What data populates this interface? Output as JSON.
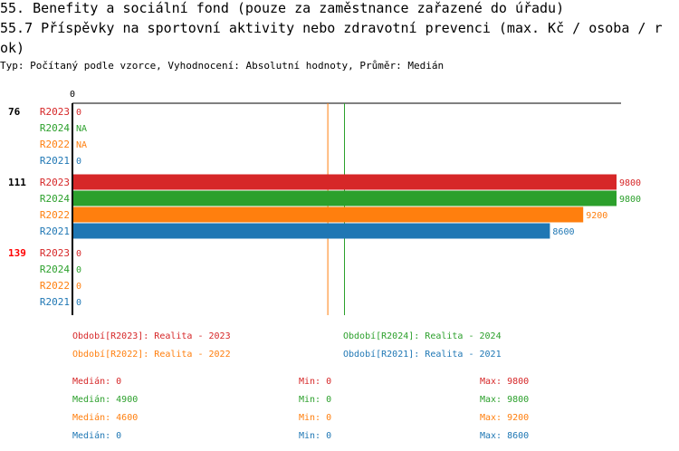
{
  "title": "55. Benefity a sociální fond (pouze za zaměstnance zařazené do úřadu)",
  "subtitle": "55.7 Příspěvky na sportovní aktivity nebo zdravotní prevenci (max. Kč / osoba / rok)",
  "type_line": "Typ: Počítaný podle vzorce, Vyhodnocení: Absolutní hodnoty, Průměr: Medián",
  "colors": {
    "R2023": "#d62728",
    "R2024": "#2ca02c",
    "R2022": "#ff7f0e",
    "R2021": "#1f77b4",
    "highlight": "#ff0000"
  },
  "chart_data": {
    "type": "bar",
    "orientation": "horizontal",
    "x_tick_labels": [
      "0"
    ],
    "xlim": [
      0,
      9800
    ],
    "series_order": [
      "R2023",
      "R2024",
      "R2022",
      "R2021"
    ],
    "groups": [
      {
        "label": "76",
        "highlight": false,
        "values": [
          {
            "series": "R2023",
            "value": 0,
            "label": "0"
          },
          {
            "series": "R2024",
            "value": null,
            "label": "NA"
          },
          {
            "series": "R2022",
            "value": null,
            "label": "NA"
          },
          {
            "series": "R2021",
            "value": 0,
            "label": "0"
          }
        ]
      },
      {
        "label": "111",
        "highlight": false,
        "values": [
          {
            "series": "R2023",
            "value": 9800,
            "label": "9800"
          },
          {
            "series": "R2024",
            "value": 9800,
            "label": "9800"
          },
          {
            "series": "R2022",
            "value": 9200,
            "label": "9200"
          },
          {
            "series": "R2021",
            "value": 8600,
            "label": "8600"
          }
        ]
      },
      {
        "label": "139",
        "highlight": true,
        "values": [
          {
            "series": "R2023",
            "value": 0,
            "label": "0"
          },
          {
            "series": "R2024",
            "value": 0,
            "label": "0"
          },
          {
            "series": "R2022",
            "value": 0,
            "label": "0"
          },
          {
            "series": "R2021",
            "value": 0,
            "label": "0"
          }
        ]
      }
    ],
    "median_lines": [
      {
        "series": "R2022",
        "value": 4600
      },
      {
        "series": "R2024",
        "value": 4900
      }
    ],
    "legend": [
      {
        "series": "R2023",
        "text": "Období[R2023]: Realita - 2023"
      },
      {
        "series": "R2024",
        "text": "Období[R2024]: Realita - 2024"
      },
      {
        "series": "R2022",
        "text": "Období[R2022]: Realita - 2022"
      },
      {
        "series": "R2021",
        "text": "Období[R2021]: Realita - 2021"
      }
    ],
    "stats": [
      {
        "series": "R2023",
        "median": "Medián: 0",
        "min": "Min: 0",
        "max": "Max: 9800"
      },
      {
        "series": "R2024",
        "median": "Medián: 4900",
        "min": "Min: 0",
        "max": "Max: 9800"
      },
      {
        "series": "R2022",
        "median": "Medián: 4600",
        "min": "Min: 0",
        "max": "Max: 9200"
      },
      {
        "series": "R2021",
        "median": "Medián: 0",
        "min": "Min: 0",
        "max": "Max: 8600"
      }
    ]
  }
}
